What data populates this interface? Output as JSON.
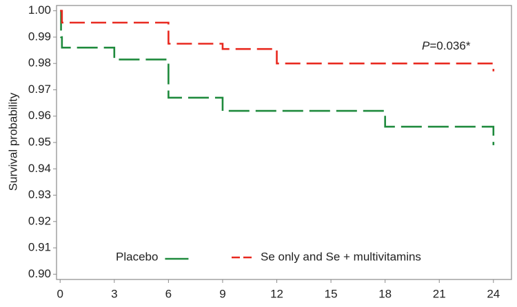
{
  "chart_data": {
    "type": "step",
    "y_label": "Survival probability",
    "annotation": [
      "P",
      "=0.036*"
    ],
    "xlim": [
      -0.2,
      25
    ],
    "ylim": [
      0.898,
      1.002
    ],
    "xticks": [
      0,
      3,
      6,
      9,
      12,
      15,
      18,
      21,
      24
    ],
    "yticks": [
      {
        "value": 0.9,
        "label": "0.90"
      },
      0.91,
      0.92,
      0.93,
      0.94,
      0.95,
      0.96,
      0.97,
      0.98,
      0.99,
      {
        "value": 1,
        "label": "1.00"
      }
    ],
    "legend": "bottom",
    "series": [
      {
        "name": "Placebo",
        "color": "#1e8a3c",
        "x": [
          0,
          0.05,
          0.1,
          3,
          6,
          9,
          18,
          24
        ],
        "values": [
          1.0,
          0.99,
          0.986,
          0.9815,
          0.967,
          0.962,
          0.956,
          0.949
        ]
      },
      {
        "name": "Se only and Se + multivitamins",
        "color": "#e8281e",
        "x": [
          0,
          0.1,
          6,
          9,
          12,
          24
        ],
        "values": [
          1.0,
          0.9955,
          0.9875,
          0.9855,
          0.98,
          0.977
        ]
      }
    ]
  }
}
